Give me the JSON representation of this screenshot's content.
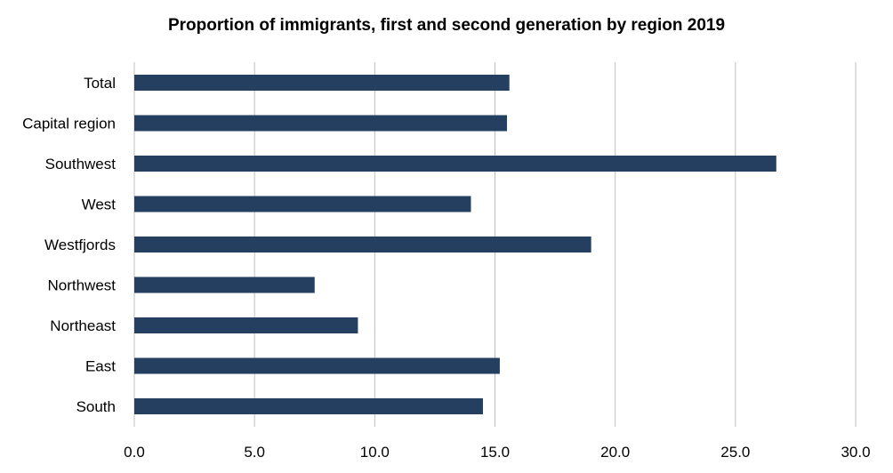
{
  "chart_data": {
    "type": "bar",
    "orientation": "horizontal",
    "title": "Proportion of immigrants, first and second generation by region 2019",
    "xlabel": "",
    "ylabel": "",
    "categories": [
      "Total",
      "Capital region",
      "Southwest",
      "West",
      "Westfjords",
      "Northwest",
      "Northeast",
      "East",
      "South"
    ],
    "values": [
      15.6,
      15.5,
      26.7,
      14.0,
      19.0,
      7.5,
      9.3,
      15.2,
      14.5
    ],
    "xlim": [
      0,
      30
    ],
    "xticks": [
      "0.0",
      "5.0",
      "10.0",
      "15.0",
      "20.0",
      "25.0",
      "30.0"
    ],
    "grid": "vertical",
    "legend": "none",
    "bar_color": "#243f60",
    "grid_color": "#bfbfbf"
  }
}
